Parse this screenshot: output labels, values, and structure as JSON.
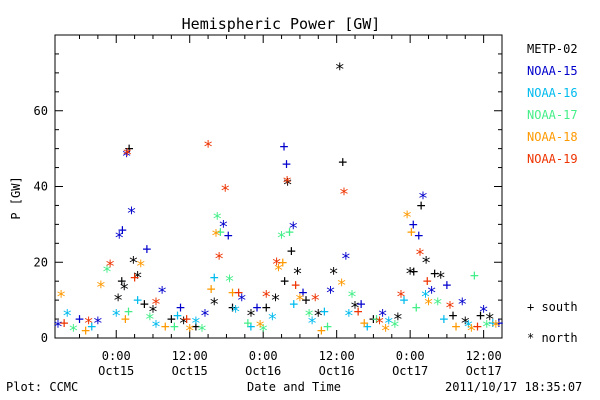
{
  "chart_data": {
    "type": "scatter",
    "title": "Hemispheric Power [GW]",
    "ylabel": "P [GW]",
    "xlabel": "Date and Time",
    "ylim": [
      0,
      80
    ],
    "yticks": [
      0,
      20,
      40,
      60
    ],
    "xlim_hours": [
      -10,
      63
    ],
    "xticks": [
      {
        "hours": 0,
        "time": "0:00",
        "date": "Oct15"
      },
      {
        "hours": 12,
        "time": "12:00",
        "date": "Oct15"
      },
      {
        "hours": 24,
        "time": "0:00",
        "date": "Oct16"
      },
      {
        "hours": 36,
        "time": "12:00",
        "date": "Oct16"
      },
      {
        "hours": 48,
        "time": "0:00",
        "date": "Oct17"
      },
      {
        "hours": 60,
        "time": "12:00",
        "date": "Oct17"
      }
    ],
    "legend_position": "right",
    "marker_legend": [
      {
        "symbol": "+",
        "label": "south"
      },
      {
        "symbol": "*",
        "label": "north"
      }
    ],
    "footer_left": "Plot: CCMC",
    "footer_right": "2011/10/17 18:35:07",
    "series": [
      {
        "name": "METP-02",
        "color": "#000000",
        "points": [
          {
            "x": 0.3,
            "y": 10.0,
            "m": "*"
          },
          {
            "x": 0.9,
            "y": 15.0,
            "m": "+"
          },
          {
            "x": 1.3,
            "y": 13.0,
            "m": "*"
          },
          {
            "x": 2.1,
            "y": 50.0,
            "m": "+"
          },
          {
            "x": 2.8,
            "y": 20.0,
            "m": "*"
          },
          {
            "x": 3.5,
            "y": 16.0,
            "m": "*"
          },
          {
            "x": 4.6,
            "y": 9.0,
            "m": "+"
          },
          {
            "x": 6.0,
            "y": 7.0,
            "m": "*"
          },
          {
            "x": 9.0,
            "y": 5.0,
            "m": "+"
          },
          {
            "x": 11.0,
            "y": 4.0,
            "m": "*"
          },
          {
            "x": 13.0,
            "y": 3.0,
            "m": "+"
          },
          {
            "x": 16.0,
            "y": 9.0,
            "m": "*"
          },
          {
            "x": 19.0,
            "y": 8.0,
            "m": "+"
          },
          {
            "x": 22.0,
            "y": 6.0,
            "m": "*"
          },
          {
            "x": 24.5,
            "y": 8.0,
            "m": "+"
          },
          {
            "x": 26.0,
            "y": 10.0,
            "m": "*"
          },
          {
            "x": 27.5,
            "y": 15.0,
            "m": "+"
          },
          {
            "x": 28.0,
            "y": 40.5,
            "m": "*"
          },
          {
            "x": 28.6,
            "y": 23.0,
            "m": "+"
          },
          {
            "x": 29.6,
            "y": 17.0,
            "m": "*"
          },
          {
            "x": 31.0,
            "y": 10.0,
            "m": "+"
          },
          {
            "x": 33.0,
            "y": 6.0,
            "m": "*"
          },
          {
            "x": 35.5,
            "y": 17.0,
            "m": "*"
          },
          {
            "x": 36.5,
            "y": 71.0,
            "m": "*"
          },
          {
            "x": 37.0,
            "y": 46.5,
            "m": "+"
          },
          {
            "x": 39.0,
            "y": 8.0,
            "m": "*"
          },
          {
            "x": 42.0,
            "y": 5.0,
            "m": "+"
          },
          {
            "x": 46.0,
            "y": 5.0,
            "m": "*"
          },
          {
            "x": 48.0,
            "y": 17.0,
            "m": "*"
          },
          {
            "x": 48.6,
            "y": 17.5,
            "m": "+"
          },
          {
            "x": 49.8,
            "y": 35.0,
            "m": "+"
          },
          {
            "x": 50.6,
            "y": 20.0,
            "m": "*"
          },
          {
            "x": 52.0,
            "y": 17.0,
            "m": "+"
          },
          {
            "x": 53.0,
            "y": 16.0,
            "m": "*"
          },
          {
            "x": 55.0,
            "y": 6.0,
            "m": "+"
          },
          {
            "x": 57.0,
            "y": 4.0,
            "m": "*"
          },
          {
            "x": 59.5,
            "y": 6.0,
            "m": "+"
          },
          {
            "x": 61.0,
            "y": 5.0,
            "m": "*"
          }
        ]
      },
      {
        "name": "NOAA-15",
        "color": "#0000cc",
        "points": [
          {
            "x": -9.5,
            "y": 3.0,
            "m": "*"
          },
          {
            "x": -6.0,
            "y": 5.0,
            "m": "+"
          },
          {
            "x": -3.0,
            "y": 4.0,
            "m": "*"
          },
          {
            "x": 0.5,
            "y": 26.5,
            "m": "*"
          },
          {
            "x": 1.0,
            "y": 28.5,
            "m": "+"
          },
          {
            "x": 1.7,
            "y": 48.0,
            "m": "*"
          },
          {
            "x": 2.5,
            "y": 33.0,
            "m": "*"
          },
          {
            "x": 5.0,
            "y": 23.5,
            "m": "+"
          },
          {
            "x": 7.5,
            "y": 12.0,
            "m": "*"
          },
          {
            "x": 10.5,
            "y": 8.0,
            "m": "+"
          },
          {
            "x": 14.5,
            "y": 6.0,
            "m": "*"
          },
          {
            "x": 17.5,
            "y": 29.5,
            "m": "*"
          },
          {
            "x": 18.3,
            "y": 27.0,
            "m": "+"
          },
          {
            "x": 20.5,
            "y": 10.0,
            "m": "*"
          },
          {
            "x": 23.0,
            "y": 8.0,
            "m": "+"
          },
          {
            "x": 27.4,
            "y": 50.5,
            "m": "+"
          },
          {
            "x": 27.8,
            "y": 46.0,
            "m": "+"
          },
          {
            "x": 28.9,
            "y": 29.0,
            "m": "*"
          },
          {
            "x": 30.5,
            "y": 12.0,
            "m": "+"
          },
          {
            "x": 35.0,
            "y": 12.0,
            "m": "*"
          },
          {
            "x": 37.5,
            "y": 21.0,
            "m": "*"
          },
          {
            "x": 40.0,
            "y": 9.0,
            "m": "+"
          },
          {
            "x": 43.5,
            "y": 6.0,
            "m": "*"
          },
          {
            "x": 48.5,
            "y": 30.0,
            "m": "+"
          },
          {
            "x": 49.4,
            "y": 27.0,
            "m": "+"
          },
          {
            "x": 50.1,
            "y": 37.0,
            "m": "*"
          },
          {
            "x": 51.5,
            "y": 12.0,
            "m": "*"
          },
          {
            "x": 54.0,
            "y": 14.0,
            "m": "+"
          },
          {
            "x": 56.5,
            "y": 9.0,
            "m": "*"
          },
          {
            "x": 60.0,
            "y": 7.0,
            "m": "*"
          },
          {
            "x": 62.5,
            "y": 4.0,
            "m": "+"
          }
        ]
      },
      {
        "name": "NOAA-16",
        "color": "#00bbee",
        "points": [
          {
            "x": -8.0,
            "y": 6.0,
            "m": "*"
          },
          {
            "x": -4.0,
            "y": 3.0,
            "m": "+"
          },
          {
            "x": 0.0,
            "y": 6.0,
            "m": "*"
          },
          {
            "x": 3.5,
            "y": 10.0,
            "m": "+"
          },
          {
            "x": 6.5,
            "y": 3.0,
            "m": "*"
          },
          {
            "x": 10.0,
            "y": 6.0,
            "m": "+"
          },
          {
            "x": 13.0,
            "y": 4.0,
            "m": "*"
          },
          {
            "x": 16.0,
            "y": 16.0,
            "m": "+"
          },
          {
            "x": 19.5,
            "y": 7.0,
            "m": "*"
          },
          {
            "x": 22.0,
            "y": 3.0,
            "m": "+"
          },
          {
            "x": 25.5,
            "y": 5.0,
            "m": "*"
          },
          {
            "x": 29.0,
            "y": 9.0,
            "m": "+"
          },
          {
            "x": 32.0,
            "y": 4.0,
            "m": "*"
          },
          {
            "x": 34.0,
            "y": 7.0,
            "m": "+"
          },
          {
            "x": 38.0,
            "y": 6.0,
            "m": "*"
          },
          {
            "x": 41.0,
            "y": 3.0,
            "m": "+"
          },
          {
            "x": 44.5,
            "y": 4.0,
            "m": "*"
          },
          {
            "x": 47.0,
            "y": 10.0,
            "m": "+"
          },
          {
            "x": 50.5,
            "y": 11.0,
            "m": "*"
          },
          {
            "x": 53.5,
            "y": 5.0,
            "m": "+"
          },
          {
            "x": 57.5,
            "y": 3.0,
            "m": "*"
          },
          {
            "x": 61.5,
            "y": 4.0,
            "m": "+"
          }
        ]
      },
      {
        "name": "NOAA-17",
        "color": "#44ee88",
        "points": [
          {
            "x": -7.0,
            "y": 2.0,
            "m": "*"
          },
          {
            "x": -1.5,
            "y": 17.5,
            "m": "*"
          },
          {
            "x": 2.0,
            "y": 7.0,
            "m": "+"
          },
          {
            "x": 5.5,
            "y": 5.0,
            "m": "*"
          },
          {
            "x": 9.5,
            "y": 3.0,
            "m": "+"
          },
          {
            "x": 14.0,
            "y": 2.0,
            "m": "*"
          },
          {
            "x": 16.5,
            "y": 31.5,
            "m": "*"
          },
          {
            "x": 17.0,
            "y": 28.0,
            "m": "+"
          },
          {
            "x": 18.5,
            "y": 15.0,
            "m": "*"
          },
          {
            "x": 21.5,
            "y": 4.0,
            "m": "+"
          },
          {
            "x": 24.0,
            "y": 2.0,
            "m": "*"
          },
          {
            "x": 27.0,
            "y": 26.5,
            "m": "*"
          },
          {
            "x": 28.3,
            "y": 28.0,
            "m": "+"
          },
          {
            "x": 31.5,
            "y": 6.0,
            "m": "*"
          },
          {
            "x": 34.5,
            "y": 3.0,
            "m": "+"
          },
          {
            "x": 38.5,
            "y": 11.0,
            "m": "*"
          },
          {
            "x": 42.5,
            "y": 5.0,
            "m": "+"
          },
          {
            "x": 45.5,
            "y": 3.0,
            "m": "*"
          },
          {
            "x": 49.0,
            "y": 8.0,
            "m": "+"
          },
          {
            "x": 52.5,
            "y": 9.0,
            "m": "*"
          },
          {
            "x": 58.5,
            "y": 16.5,
            "m": "+"
          },
          {
            "x": 60.5,
            "y": 3.0,
            "m": "*"
          }
        ]
      },
      {
        "name": "NOAA-18",
        "color": "#ff9900",
        "points": [
          {
            "x": -9.0,
            "y": 11.0,
            "m": "*"
          },
          {
            "x": -5.0,
            "y": 2.0,
            "m": "+"
          },
          {
            "x": -2.5,
            "y": 13.5,
            "m": "*"
          },
          {
            "x": 1.5,
            "y": 5.0,
            "m": "+"
          },
          {
            "x": 4.0,
            "y": 19.0,
            "m": "*"
          },
          {
            "x": 8.0,
            "y": 3.0,
            "m": "+"
          },
          {
            "x": 12.0,
            "y": 2.0,
            "m": "*"
          },
          {
            "x": 15.5,
            "y": 13.0,
            "m": "+"
          },
          {
            "x": 16.3,
            "y": 27.0,
            "m": "*"
          },
          {
            "x": 19.0,
            "y": 12.0,
            "m": "+"
          },
          {
            "x": 23.5,
            "y": 3.0,
            "m": "*"
          },
          {
            "x": 26.5,
            "y": 18.0,
            "m": "*"
          },
          {
            "x": 27.2,
            "y": 20.0,
            "m": "+"
          },
          {
            "x": 30.0,
            "y": 10.0,
            "m": "*"
          },
          {
            "x": 33.5,
            "y": 2.0,
            "m": "+"
          },
          {
            "x": 36.8,
            "y": 14.0,
            "m": "*"
          },
          {
            "x": 40.5,
            "y": 4.0,
            "m": "+"
          },
          {
            "x": 44.0,
            "y": 2.0,
            "m": "*"
          },
          {
            "x": 47.5,
            "y": 32.0,
            "m": "*"
          },
          {
            "x": 48.2,
            "y": 28.0,
            "m": "+"
          },
          {
            "x": 51.0,
            "y": 9.0,
            "m": "*"
          },
          {
            "x": 55.5,
            "y": 3.0,
            "m": "+"
          },
          {
            "x": 58.0,
            "y": 2.0,
            "m": "*"
          },
          {
            "x": 62.0,
            "y": 3.0,
            "m": "*"
          }
        ]
      },
      {
        "name": "NOAA-19",
        "color": "#ee3300",
        "points": [
          {
            "x": -8.5,
            "y": 4.0,
            "m": "+"
          },
          {
            "x": -4.5,
            "y": 4.0,
            "m": "*"
          },
          {
            "x": -1.0,
            "y": 19.0,
            "m": "*"
          },
          {
            "x": 1.8,
            "y": 48.5,
            "m": "*"
          },
          {
            "x": 3.0,
            "y": 16.0,
            "m": "+"
          },
          {
            "x": 6.5,
            "y": 9.0,
            "m": "*"
          },
          {
            "x": 11.5,
            "y": 5.0,
            "m": "+"
          },
          {
            "x": 15.0,
            "y": 50.5,
            "m": "*"
          },
          {
            "x": 16.8,
            "y": 21.0,
            "m": "*"
          },
          {
            "x": 17.8,
            "y": 39.0,
            "m": "*"
          },
          {
            "x": 20.0,
            "y": 12.0,
            "m": "+"
          },
          {
            "x": 24.5,
            "y": 11.0,
            "m": "*"
          },
          {
            "x": 26.2,
            "y": 19.5,
            "m": "*"
          },
          {
            "x": 27.9,
            "y": 41.0,
            "m": "*"
          },
          {
            "x": 29.3,
            "y": 14.0,
            "m": "+"
          },
          {
            "x": 32.5,
            "y": 10.0,
            "m": "*"
          },
          {
            "x": 37.2,
            "y": 38.0,
            "m": "*"
          },
          {
            "x": 39.5,
            "y": 7.0,
            "m": "+"
          },
          {
            "x": 43.0,
            "y": 4.0,
            "m": "*"
          },
          {
            "x": 46.5,
            "y": 11.0,
            "m": "*"
          },
          {
            "x": 49.6,
            "y": 22.0,
            "m": "*"
          },
          {
            "x": 50.8,
            "y": 15.0,
            "m": "+"
          },
          {
            "x": 54.5,
            "y": 8.0,
            "m": "*"
          },
          {
            "x": 59.0,
            "y": 3.0,
            "m": "+"
          }
        ]
      }
    ]
  }
}
